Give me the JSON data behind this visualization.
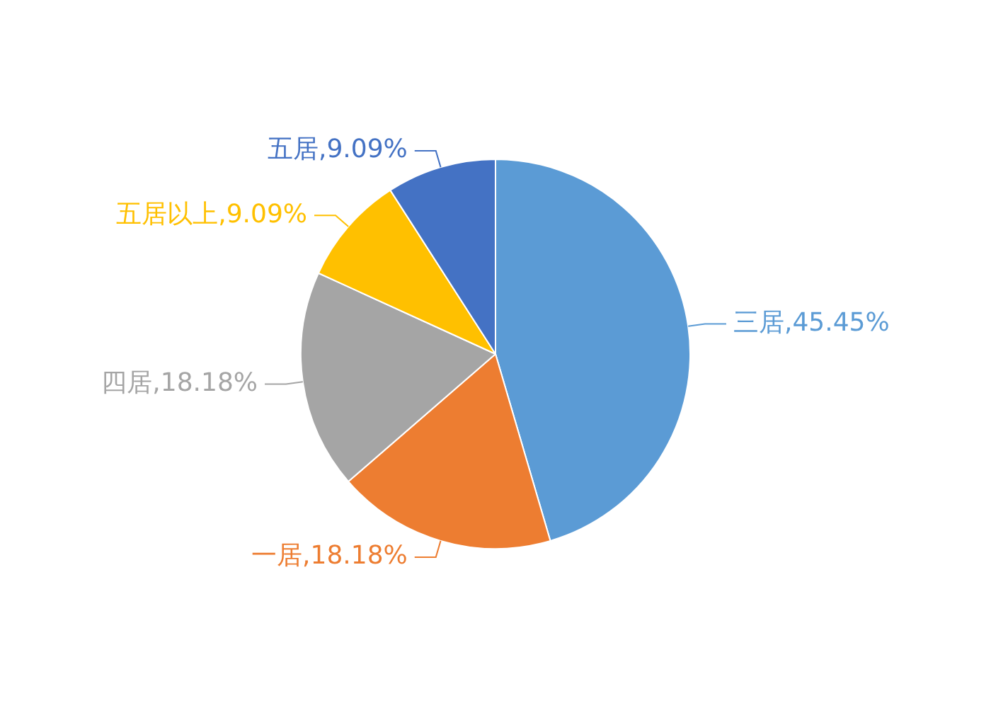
{
  "chart_data": {
    "type": "pie",
    "categories": [
      "三居",
      "一居",
      "四居",
      "五居以上",
      "五居"
    ],
    "values": [
      45.45,
      18.18,
      18.18,
      9.09,
      9.09
    ],
    "colors": [
      "#5b9bd5",
      "#ed7d31",
      "#a5a5a5",
      "#ffc000",
      "#4472c4"
    ],
    "value_labels": [
      "45.45%",
      "18.18%",
      "18.18%",
      "9.09%",
      "9.09%"
    ],
    "legend": false
  }
}
